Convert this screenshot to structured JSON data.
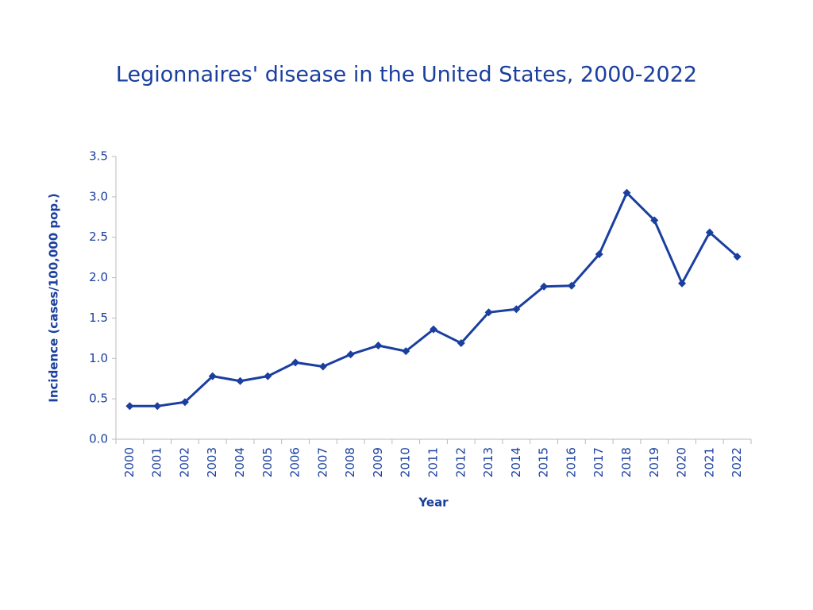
{
  "chart_data": {
    "type": "line",
    "title": "Legionnaires' disease in the United States, 2000-2022",
    "x_label": "Year",
    "y_label": "Incidence (cases/100,000 pop.)",
    "categories": [
      "2000",
      "2001",
      "2002",
      "2003",
      "2004",
      "2005",
      "2006",
      "2007",
      "2008",
      "2009",
      "2010",
      "2011",
      "2012",
      "2013",
      "2014",
      "2015",
      "2016",
      "2017",
      "2018",
      "2019",
      "2020",
      "2021",
      "2022"
    ],
    "values": [
      0.41,
      0.41,
      0.46,
      0.78,
      0.72,
      0.78,
      0.95,
      0.9,
      1.05,
      1.16,
      1.09,
      1.36,
      1.19,
      1.57,
      1.61,
      1.89,
      1.9,
      2.29,
      3.05,
      2.71,
      1.93,
      2.56,
      2.26
    ],
    "color": "#1a3f9f",
    "ylim": [
      0,
      3.5
    ],
    "yticks": [
      {
        "value": 0,
        "label": "0.0"
      },
      0.5,
      {
        "value": 1,
        "label": "1.0"
      },
      1.5,
      {
        "value": 2,
        "label": "2.0"
      },
      2.5,
      {
        "value": 3,
        "label": "3.0"
      },
      3.5
    ],
    "grid": false
  }
}
